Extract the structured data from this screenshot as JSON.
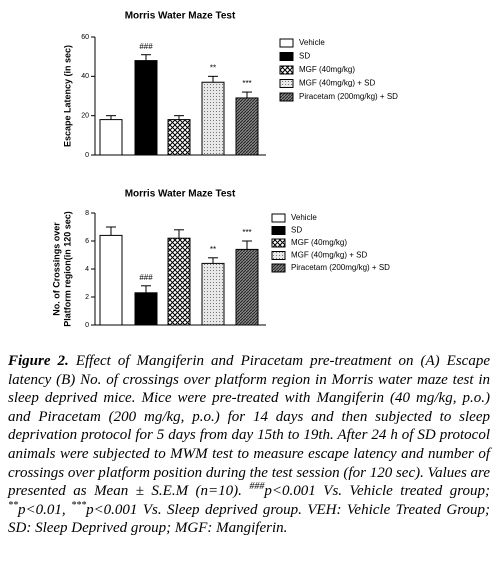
{
  "chart_data": [
    {
      "type": "bar",
      "title": "Morris Water Maze Test",
      "ylabel": [
        "Escape Latency (in sec)"
      ],
      "categories": [
        "Vehicle",
        "SD",
        "MGF (40mg/kg)",
        "MGF (40mg/kg) + SD",
        "Piracetam (200mg/kg) + SD"
      ],
      "values": [
        18,
        48,
        18,
        37,
        29
      ],
      "errors": [
        2,
        3,
        2,
        3,
        3
      ],
      "annotations": [
        null,
        "###",
        null,
        "**",
        "***"
      ],
      "patterns": [
        "white",
        "black",
        "crosshatch",
        "dots",
        "hatch"
      ],
      "ylim": [
        0,
        60
      ],
      "yticks": [
        0,
        20,
        40,
        60
      ]
    },
    {
      "type": "bar",
      "title": "Morris Water Maze Test",
      "ylabel": [
        "No. of Crossings over",
        "Platform region(in 120 sec)"
      ],
      "categories": [
        "Vehicle",
        "SD",
        "MGF (40mg/kg)",
        "MGF (40mg/kg) + SD",
        "Piracetam (200mg/kg) + SD"
      ],
      "values": [
        6.4,
        2.3,
        6.2,
        4.4,
        5.4
      ],
      "errors": [
        0.6,
        0.5,
        0.6,
        0.4,
        0.6
      ],
      "annotations": [
        null,
        "###",
        null,
        "**",
        "***"
      ],
      "patterns": [
        "white",
        "black",
        "crosshatch",
        "dots",
        "hatch"
      ],
      "ylim": [
        0,
        8
      ],
      "yticks": [
        0,
        2,
        4,
        6,
        8
      ]
    }
  ],
  "caption": {
    "label": "Figure 2.",
    "parts": [
      {
        "text": " Effect of Mangiferin and Piracetam pre-treatment on (A) Escape latency (B) No. of crossings over platform region in Morris water maze test in sleep deprived mice. Mice were pre-treated with Mangiferin (40 mg/kg, p.o.) and Piracetam (200 mg/kg, p.o.) for 14 days and then subjected to sleep deprivation protocol for 5 days from day 15th to 19th. After 24 h of SD protocol animals were subjected to MWM test to measure escape latency and number of crossings over platform position during the test session (for 120 sec). Values are presented as Mean ± S.E.M (n=10). "
      },
      {
        "text": "###",
        "sup": true
      },
      {
        "text": "p<0.001 Vs. Vehicle treated group; "
      },
      {
        "text": "**",
        "sup": true
      },
      {
        "text": "p<0.01, "
      },
      {
        "text": "***",
        "sup": true
      },
      {
        "text": "p<0.001 Vs. Sleep deprived group. VEH: Vehicle Treated Group; SD: Sleep Deprived group; MGF: Mangiferin."
      }
    ]
  }
}
